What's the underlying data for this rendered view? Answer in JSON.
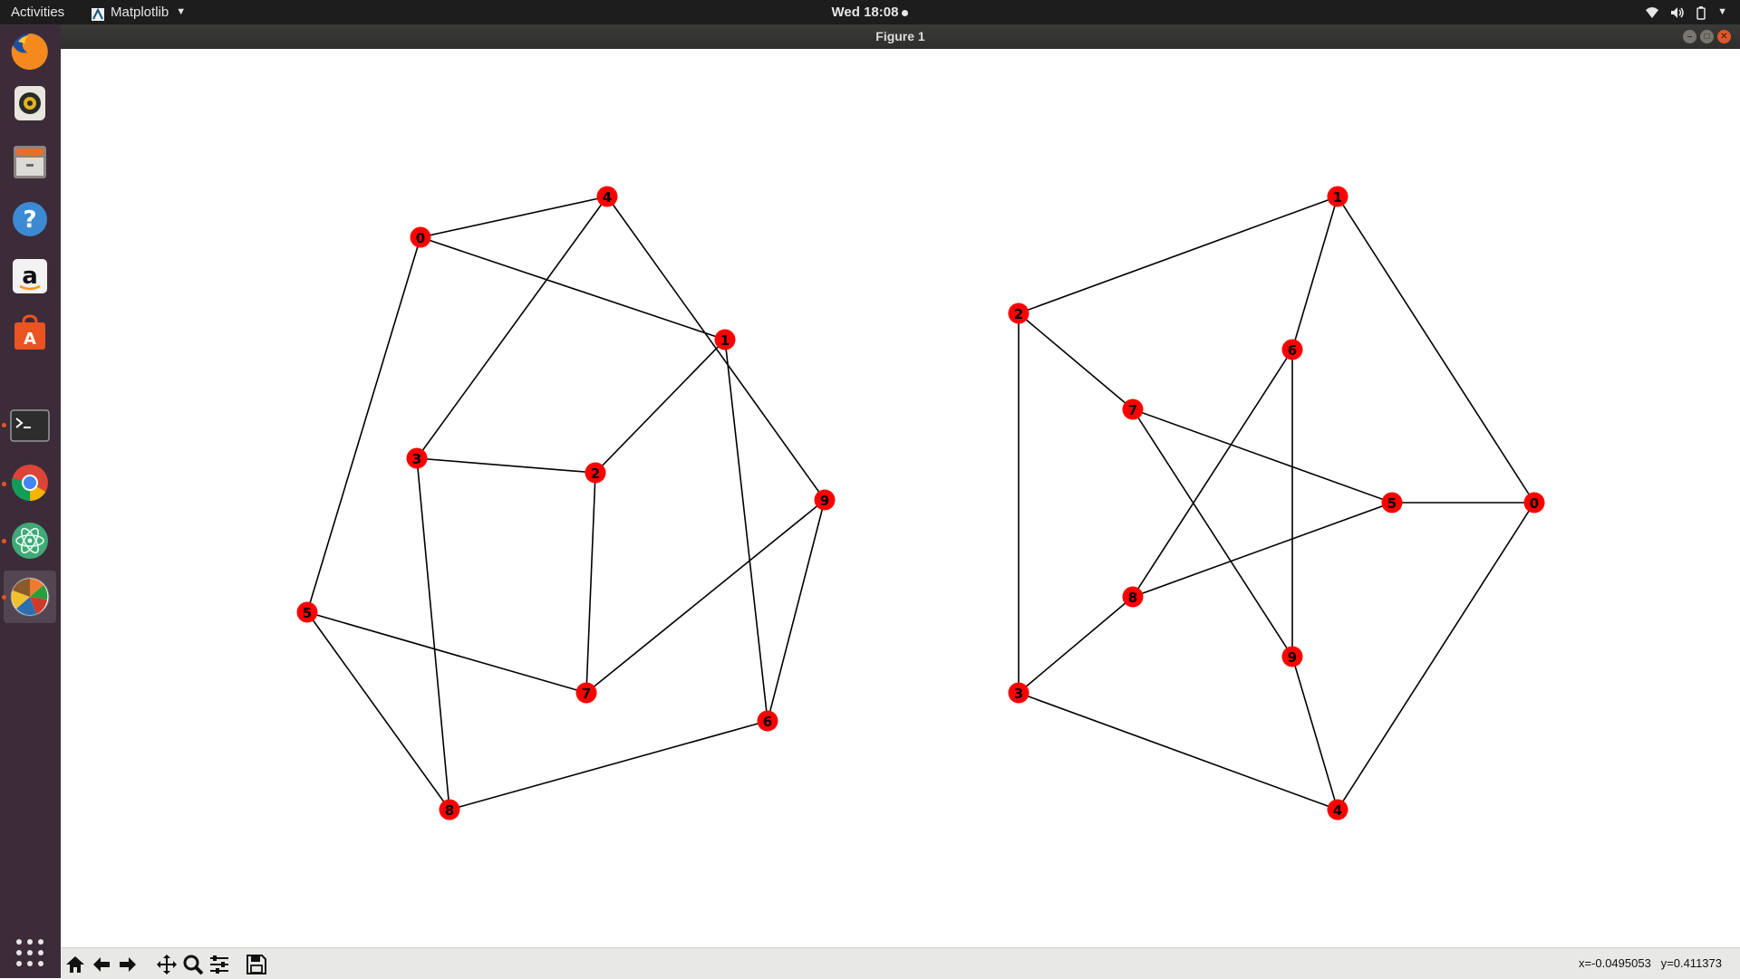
{
  "topbar": {
    "activities_label": "Activities",
    "app_name": "Matplotlib",
    "clock": "Wed 18:08"
  },
  "dock": {
    "items": [
      {
        "name": "firefox",
        "icon": "firefox-icon"
      },
      {
        "name": "rhythmbox",
        "icon": "speaker-icon"
      },
      {
        "name": "files",
        "icon": "file-cabinet-icon"
      },
      {
        "name": "help",
        "icon": "help-icon"
      },
      {
        "name": "amazon",
        "icon": "amazon-icon"
      },
      {
        "name": "software",
        "icon": "software-bag-icon"
      },
      {
        "name": "terminal",
        "icon": "terminal-icon"
      },
      {
        "name": "chrome",
        "icon": "chrome-icon"
      },
      {
        "name": "atom",
        "icon": "atom-icon"
      },
      {
        "name": "matplotlib",
        "icon": "matplotlib-icon"
      }
    ],
    "show_apps_icon": "grid-icon"
  },
  "window": {
    "title": "Figure 1"
  },
  "graphs": {
    "node_color": "#ff0000",
    "left": {
      "nodes": [
        "0",
        "1",
        "2",
        "3",
        "4",
        "5",
        "6",
        "7",
        "8",
        "9"
      ],
      "edges": [
        [
          "0",
          "4"
        ],
        [
          "0",
          "1"
        ],
        [
          "0",
          "5"
        ],
        [
          "4",
          "3"
        ],
        [
          "4",
          "9"
        ],
        [
          "1",
          "2"
        ],
        [
          "1",
          "6"
        ],
        [
          "3",
          "2"
        ],
        [
          "3",
          "8"
        ],
        [
          "2",
          "7"
        ],
        [
          "5",
          "7"
        ],
        [
          "5",
          "8"
        ],
        [
          "9",
          "7"
        ],
        [
          "9",
          "6"
        ],
        [
          "8",
          "6"
        ]
      ]
    },
    "right": {
      "nodes": [
        "0",
        "1",
        "2",
        "3",
        "4",
        "5",
        "6",
        "7",
        "8",
        "9"
      ],
      "edges": [
        [
          "1",
          "2"
        ],
        [
          "1",
          "6"
        ],
        [
          "1",
          "0"
        ],
        [
          "2",
          "7"
        ],
        [
          "2",
          "3"
        ],
        [
          "6",
          "8"
        ],
        [
          "6",
          "9"
        ],
        [
          "7",
          "5"
        ],
        [
          "7",
          "9"
        ],
        [
          "5",
          "0"
        ],
        [
          "5",
          "8"
        ],
        [
          "8",
          "3"
        ],
        [
          "3",
          "4"
        ],
        [
          "9",
          "4"
        ],
        [
          "0",
          "4"
        ]
      ]
    }
  },
  "toolbar": {
    "tools": [
      "home-icon",
      "back-arrow-icon",
      "forward-arrow-icon",
      "pan-icon",
      "zoom-icon",
      "subplots-config-icon",
      "save-icon"
    ],
    "coords": "x=-0.0495053   y=0.411373"
  }
}
